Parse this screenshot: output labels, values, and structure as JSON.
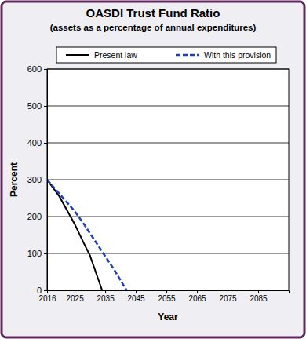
{
  "chart_data": {
    "type": "line",
    "title": "OASDI Trust Fund Ratio",
    "subtitle": "(assets as a percentage of annual expenditures)",
    "x_label": "Year",
    "y_label": "Percent",
    "x": [
      2016,
      2020,
      2025,
      2028,
      2030,
      2034,
      2038,
      2042
    ],
    "series": [
      {
        "name": "Present law",
        "color": "#000000",
        "line_style": "solid",
        "values": [
          300,
          255,
          180,
          128,
          95,
          0,
          null,
          null
        ]
      },
      {
        "name": "With this provision",
        "color": "#1f3fbf",
        "line_style": "dashed",
        "values": [
          300,
          262,
          215,
          180,
          155,
          105,
          55,
          0
        ]
      }
    ],
    "xlim": [
      2016,
      2095
    ],
    "xticks": [
      2016,
      2025,
      2035,
      2045,
      2055,
      2065,
      2075,
      2085
    ],
    "ylim": [
      0,
      600
    ],
    "yticks": [
      0,
      100,
      200,
      300,
      400,
      500,
      600
    ],
    "grid": true,
    "legend": "top"
  }
}
